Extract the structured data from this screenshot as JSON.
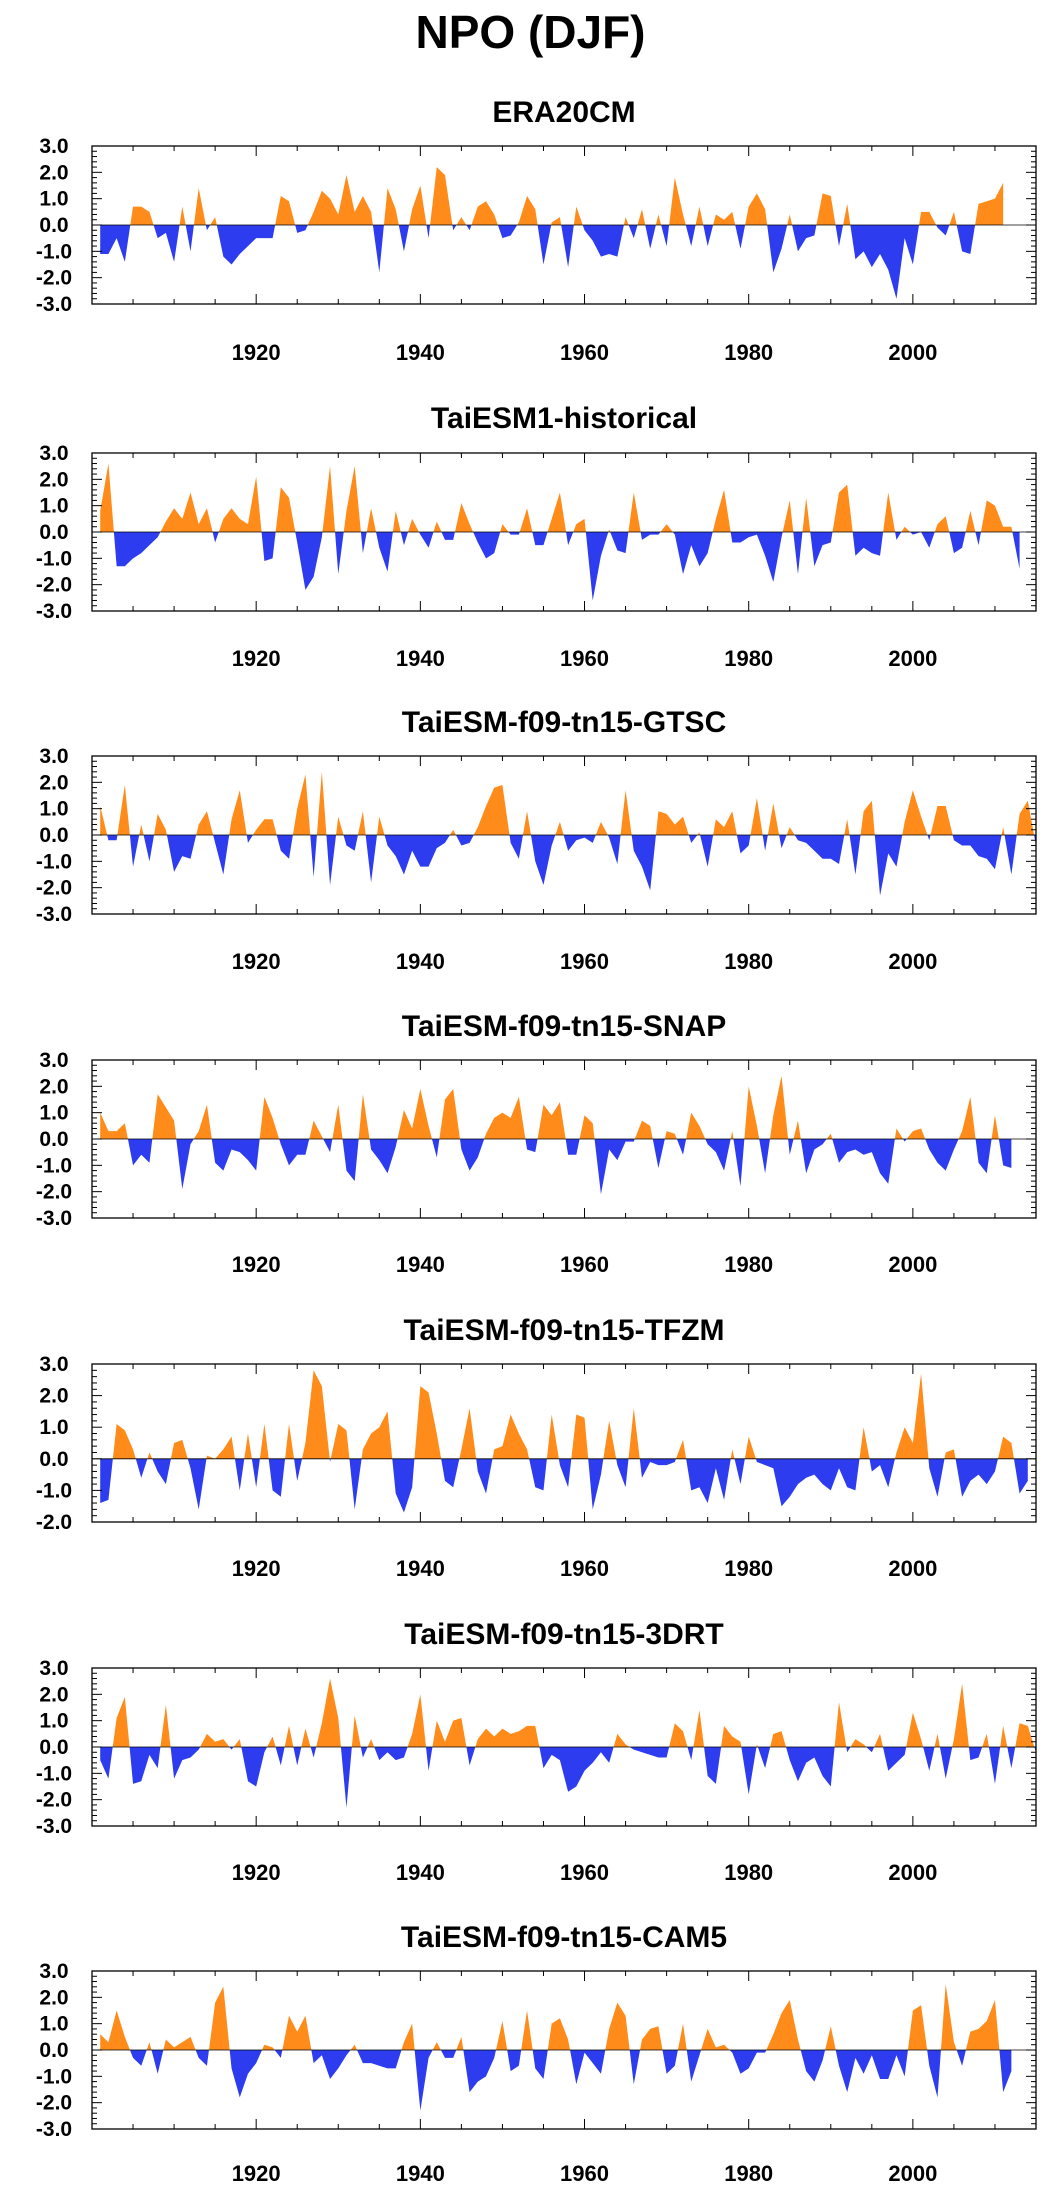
{
  "title": "NPO (DJF)",
  "colors": {
    "positive": "#ff8c1a",
    "negative": "#2e3cf0",
    "axis": "#000000"
  },
  "chart_data": [
    {
      "type": "area",
      "title": "ERA20CM",
      "xlim": [
        1900,
        2015
      ],
      "ylim": [
        -3.0,
        3.0
      ],
      "yticks": [
        "3.0",
        "2.0",
        "1.0",
        "0.0",
        "-1.0",
        "-2.0",
        "-3.0"
      ],
      "xticks": [
        "1920",
        "1940",
        "1960",
        "1980",
        "2000"
      ],
      "x_start": 1901,
      "values": [
        -1.1,
        -1.1,
        -0.5,
        -1.4,
        0.7,
        0.7,
        0.5,
        -0.5,
        -0.3,
        -1.4,
        0.7,
        -1.0,
        1.4,
        -0.2,
        0.3,
        -1.2,
        -1.5,
        -1.1,
        -0.8,
        -0.5,
        -0.5,
        -0.5,
        1.1,
        0.9,
        -0.3,
        -0.2,
        0.5,
        1.3,
        1.0,
        0.4,
        1.9,
        0.5,
        1.1,
        0.5,
        -1.8,
        1.4,
        0.6,
        -1.0,
        0.6,
        1.5,
        -0.5,
        2.2,
        1.9,
        -0.2,
        0.3,
        -0.2,
        0.7,
        0.9,
        0.4,
        -0.5,
        -0.4,
        0.1,
        1.1,
        0.6,
        -1.5,
        0.1,
        0.3,
        -1.6,
        0.7,
        -0.2,
        -0.6,
        -1.2,
        -1.1,
        -1.2,
        0.3,
        -0.5,
        0.6,
        -0.9,
        0.4,
        -0.8,
        1.8,
        0.4,
        -0.8,
        0.7,
        -0.8,
        0.4,
        0.2,
        0.5,
        -0.9,
        0.7,
        1.2,
        0.6,
        -1.8,
        -0.9,
        0.4,
        -1.0,
        -0.5,
        -0.4,
        1.2,
        1.1,
        -0.8,
        0.8,
        -1.3,
        -1.0,
        -1.6,
        -1.1,
        -1.7,
        -2.8,
        -0.5,
        -1.5,
        0.5,
        0.5,
        -0.1,
        -0.4,
        0.5,
        -1.0,
        -1.1,
        0.8,
        0.9,
        1.0,
        1.6
      ]
    },
    {
      "type": "area",
      "title": "TaiESM1-historical",
      "xlim": [
        1900,
        2015
      ],
      "ylim": [
        -3.0,
        3.0
      ],
      "yticks": [
        "3.0",
        "2.0",
        "1.0",
        "0.0",
        "-1.0",
        "-2.0",
        "-3.0"
      ],
      "xticks": [
        "1920",
        "1940",
        "1960",
        "1980",
        "2000"
      ],
      "x_start": 1901,
      "values": [
        0.8,
        2.6,
        -1.3,
        -1.3,
        -1.0,
        -0.8,
        -0.5,
        -0.2,
        0.4,
        0.9,
        0.5,
        1.5,
        0.3,
        0.9,
        -0.4,
        0.5,
        0.9,
        0.5,
        0.3,
        2.1,
        -1.1,
        -1.0,
        1.7,
        1.3,
        -0.4,
        -2.2,
        -1.7,
        -0.2,
        2.5,
        -1.6,
        0.8,
        2.5,
        -0.8,
        0.9,
        -0.6,
        -1.5,
        0.8,
        -0.5,
        0.5,
        -0.1,
        -0.6,
        0.4,
        -0.3,
        -0.3,
        1.1,
        0.3,
        -0.4,
        -1.0,
        -0.8,
        0.3,
        -0.1,
        -0.1,
        0.9,
        -0.5,
        -0.5,
        0.5,
        1.5,
        -0.5,
        0.3,
        0.5,
        -2.6,
        -0.9,
        0.1,
        -0.7,
        -0.8,
        1.5,
        -0.3,
        -0.1,
        -0.1,
        0.3,
        -0.1,
        -1.6,
        -0.5,
        -1.3,
        -0.8,
        0.5,
        1.6,
        -0.4,
        -0.4,
        -0.2,
        -0.1,
        -0.9,
        -1.9,
        -0.2,
        1.2,
        -1.6,
        1.3,
        -1.3,
        -0.5,
        -0.4,
        1.5,
        1.8,
        -0.9,
        -0.6,
        -0.8,
        -0.9,
        1.5,
        -0.3,
        0.2,
        -0.1,
        0.0,
        -0.6,
        0.3,
        0.6,
        -0.8,
        -0.6,
        0.8,
        -0.5,
        1.2,
        1.0,
        0.2,
        0.2,
        -1.4
      ]
    },
    {
      "type": "area",
      "title": "TaiESM-f09-tn15-GTSC",
      "xlim": [
        1900,
        2015
      ],
      "ylim": [
        -3.0,
        3.0
      ],
      "yticks": [
        "3.0",
        "2.0",
        "1.0",
        "0.0",
        "-1.0",
        "-2.0",
        "-3.0"
      ],
      "xticks": [
        "1920",
        "1940",
        "1960",
        "1980",
        "2000"
      ],
      "x_start": 1901,
      "values": [
        1.1,
        -0.2,
        -0.2,
        1.9,
        -1.2,
        0.4,
        -1.0,
        0.8,
        0.2,
        -1.4,
        -0.8,
        -0.9,
        0.4,
        0.9,
        -0.3,
        -1.5,
        0.6,
        1.7,
        -0.3,
        0.2,
        0.6,
        0.6,
        -0.6,
        -0.9,
        1.0,
        2.3,
        -1.6,
        2.4,
        -1.9,
        0.7,
        -0.4,
        -0.6,
        0.9,
        -1.8,
        0.7,
        -0.4,
        -0.8,
        -1.5,
        -0.6,
        -1.2,
        -1.2,
        -0.5,
        -0.3,
        0.2,
        -0.4,
        -0.3,
        0.3,
        1.1,
        1.8,
        1.9,
        -0.3,
        -0.9,
        0.9,
        -1.0,
        -1.9,
        -0.4,
        0.5,
        -0.6,
        -0.2,
        -0.1,
        -0.3,
        0.5,
        -0.1,
        -1.1,
        1.7,
        -0.6,
        -1.2,
        -2.1,
        0.9,
        0.8,
        0.4,
        0.7,
        -0.3,
        0.1,
        -1.2,
        0.6,
        0.3,
        0.9,
        -0.7,
        -0.4,
        1.4,
        -0.6,
        1.2,
        -0.5,
        0.3,
        -0.2,
        -0.3,
        -0.6,
        -0.9,
        -0.9,
        -1.1,
        0.6,
        -1.5,
        0.9,
        1.3,
        -2.3,
        -0.7,
        -1.2,
        0.5,
        1.7,
        0.7,
        -0.2,
        1.1,
        1.1,
        -0.2,
        -0.4,
        -0.4,
        -0.8,
        -0.9,
        -1.3,
        0.3,
        -1.5,
        0.8,
        1.3,
        -0.4
      ]
    },
    {
      "type": "area",
      "title": "TaiESM-f09-tn15-SNAP",
      "xlim": [
        1900,
        2015
      ],
      "ylim": [
        -3.0,
        3.0
      ],
      "yticks": [
        "3.0",
        "2.0",
        "1.0",
        "0.0",
        "-1.0",
        "-2.0",
        "-3.0"
      ],
      "xticks": [
        "1920",
        "1940",
        "1960",
        "1980",
        "2000"
      ],
      "x_start": 1901,
      "values": [
        1.0,
        0.3,
        0.3,
        0.6,
        -1.0,
        -0.6,
        -0.9,
        1.7,
        1.2,
        0.7,
        -1.9,
        -0.2,
        0.3,
        1.3,
        -0.9,
        -1.2,
        -0.4,
        -0.5,
        -0.8,
        -1.2,
        1.6,
        0.8,
        -0.2,
        -1.0,
        -0.6,
        -0.6,
        0.7,
        0.1,
        -0.5,
        1.3,
        -1.2,
        -1.6,
        1.7,
        -0.4,
        -0.8,
        -1.3,
        -0.3,
        1.1,
        0.4,
        1.9,
        0.5,
        -0.7,
        1.5,
        1.9,
        -0.4,
        -1.2,
        -0.7,
        0.2,
        0.8,
        1.0,
        0.8,
        1.6,
        -0.4,
        -0.5,
        1.3,
        0.9,
        1.4,
        -0.6,
        -0.6,
        0.9,
        0.6,
        -2.1,
        -0.4,
        -0.8,
        -0.1,
        -0.1,
        0.7,
        0.5,
        -1.1,
        0.3,
        0.2,
        -0.6,
        1.0,
        0.5,
        -0.2,
        -0.5,
        -1.2,
        0.3,
        -1.8,
        2.0,
        0.5,
        -1.3,
        0.9,
        2.4,
        -0.6,
        0.7,
        -1.3,
        -0.4,
        -0.2,
        0.2,
        -0.9,
        -0.5,
        -0.4,
        -0.6,
        -0.5,
        -1.3,
        -1.7,
        0.4,
        -0.1,
        0.3,
        0.4,
        -0.4,
        -0.9,
        -1.2,
        -0.4,
        0.3,
        1.6,
        -0.9,
        -1.3,
        0.9,
        -1.0,
        -1.1
      ]
    },
    {
      "type": "area",
      "title": "TaiESM-f09-tn15-TFZM",
      "xlim": [
        1900,
        2015
      ],
      "ylim": [
        -2.0,
        3.0
      ],
      "yticks": [
        "3.0",
        "2.0",
        "1.0",
        "0.0",
        "-1.0",
        "-2.0"
      ],
      "xticks": [
        "1920",
        "1940",
        "1960",
        "1980",
        "2000"
      ],
      "x_start": 1901,
      "values": [
        -1.4,
        -1.3,
        1.1,
        0.9,
        0.3,
        -0.6,
        0.2,
        -0.4,
        -0.8,
        0.5,
        0.6,
        -0.3,
        -1.6,
        0.1,
        0.0,
        0.3,
        0.7,
        -1.0,
        0.8,
        -0.9,
        1.1,
        -1.0,
        -1.2,
        1.1,
        -0.7,
        0.5,
        2.8,
        2.3,
        -0.1,
        1.1,
        0.9,
        -1.6,
        0.3,
        0.8,
        1.0,
        1.5,
        -1.1,
        -1.7,
        -0.9,
        2.3,
        2.1,
        0.8,
        -0.7,
        -0.9,
        0.3,
        1.6,
        -0.4,
        -1.1,
        0.3,
        0.4,
        1.4,
        0.8,
        0.3,
        -0.9,
        -1.0,
        1.4,
        -0.2,
        -0.9,
        1.4,
        1.3,
        -1.6,
        -0.5,
        1.2,
        -0.2,
        -0.9,
        1.6,
        -0.6,
        -0.1,
        -0.2,
        -0.2,
        -0.1,
        0.6,
        -1.0,
        -0.9,
        -1.4,
        -0.3,
        -1.3,
        0.3,
        -0.8,
        0.7,
        -0.1,
        -0.2,
        -0.3,
        -1.5,
        -1.2,
        -0.8,
        -0.6,
        -0.5,
        -0.8,
        -1.0,
        -0.3,
        -0.9,
        -1.0,
        1.0,
        -0.4,
        -0.2,
        -0.9,
        0.2,
        1.0,
        0.5,
        2.7,
        -0.3,
        -1.2,
        0.2,
        0.3,
        -1.2,
        -0.7,
        -0.5,
        -0.8,
        -0.4,
        0.7,
        0.5,
        -1.1,
        -0.7
      ]
    },
    {
      "type": "area",
      "title": "TaiESM-f09-tn15-3DRT",
      "xlim": [
        1900,
        2015
      ],
      "ylim": [
        -3.0,
        3.0
      ],
      "yticks": [
        "3.0",
        "2.0",
        "1.0",
        "0.0",
        "-1.0",
        "-2.0",
        "-3.0"
      ],
      "xticks": [
        "1920",
        "1940",
        "1960",
        "1980",
        "2000"
      ],
      "x_start": 1901,
      "values": [
        -0.5,
        -1.2,
        1.1,
        1.9,
        -1.4,
        -1.3,
        -0.3,
        -0.8,
        1.6,
        -1.2,
        -0.5,
        -0.4,
        -0.1,
        0.5,
        0.2,
        0.3,
        -0.1,
        0.3,
        -1.3,
        -1.5,
        -0.2,
        0.4,
        -0.7,
        0.8,
        -0.7,
        0.7,
        -0.4,
        0.9,
        2.6,
        1.1,
        -2.3,
        1.2,
        -0.4,
        0.3,
        -0.5,
        -0.2,
        -0.5,
        -0.4,
        0.5,
        2.0,
        -0.9,
        1.0,
        0.2,
        1.0,
        1.1,
        -0.7,
        0.3,
        0.7,
        0.4,
        0.7,
        0.5,
        0.6,
        0.8,
        0.8,
        -0.8,
        -0.3,
        -0.5,
        -1.7,
        -1.5,
        -0.9,
        -0.6,
        -0.2,
        -0.6,
        0.5,
        0.1,
        -0.1,
        -0.2,
        -0.3,
        -0.4,
        -0.4,
        0.9,
        0.6,
        -0.5,
        1.4,
        -1.1,
        -1.4,
        0.8,
        0.4,
        0.2,
        -1.8,
        0.1,
        -0.8,
        0.5,
        0.6,
        -0.5,
        -1.3,
        -0.6,
        -0.4,
        -1.1,
        -1.5,
        1.7,
        -0.2,
        0.3,
        0.1,
        -0.2,
        0.5,
        -0.9,
        -0.6,
        -0.3,
        1.3,
        0.3,
        -0.9,
        0.5,
        -1.2,
        0.3,
        2.4,
        -0.5,
        -0.4,
        0.5,
        -1.4,
        0.8,
        -0.8,
        0.9,
        0.8,
        -0.2
      ]
    },
    {
      "type": "area",
      "title": "TaiESM-f09-tn15-CAM5",
      "xlim": [
        1900,
        2015
      ],
      "ylim": [
        -3.0,
        3.0
      ],
      "yticks": [
        "3.0",
        "2.0",
        "1.0",
        "0.0",
        "-1.0",
        "-2.0",
        "-3.0"
      ],
      "xticks": [
        "1920",
        "1940",
        "1960",
        "1980",
        "2000"
      ],
      "x_start": 1901,
      "values": [
        0.6,
        0.3,
        1.5,
        0.5,
        -0.3,
        -0.6,
        0.3,
        -0.9,
        0.4,
        0.1,
        0.3,
        0.5,
        -0.3,
        -0.6,
        1.8,
        2.4,
        -0.7,
        -1.8,
        -0.9,
        -0.5,
        0.2,
        0.1,
        -0.3,
        1.3,
        0.7,
        1.3,
        -0.5,
        -0.2,
        -1.1,
        -0.7,
        -0.2,
        0.2,
        -0.5,
        -0.5,
        -0.6,
        -0.7,
        -0.7,
        0.3,
        1.0,
        -2.3,
        -0.3,
        0.3,
        -0.3,
        -0.3,
        0.5,
        -1.6,
        -1.2,
        -1.0,
        -0.3,
        1.1,
        -0.8,
        -0.6,
        1.5,
        -0.7,
        -1.1,
        1.0,
        1.2,
        0.4,
        -1.3,
        -0.1,
        -0.5,
        -0.9,
        0.8,
        1.8,
        1.3,
        -1.3,
        0.4,
        0.8,
        0.9,
        -0.9,
        -0.6,
        1.0,
        -1.2,
        -0.2,
        0.8,
        0.1,
        0.2,
        -0.1,
        -0.9,
        -0.7,
        -0.1,
        -0.1,
        0.6,
        1.4,
        1.9,
        0.4,
        -0.8,
        -1.2,
        -0.4,
        0.9,
        -0.6,
        -1.6,
        -0.3,
        -0.9,
        -0.2,
        -1.1,
        -1.1,
        -0.2,
        -1.0,
        1.5,
        1.7,
        -0.6,
        -1.8,
        2.5,
        0.3,
        -0.6,
        0.7,
        0.8,
        1.1,
        1.9,
        -1.6,
        -0.8
      ]
    }
  ]
}
